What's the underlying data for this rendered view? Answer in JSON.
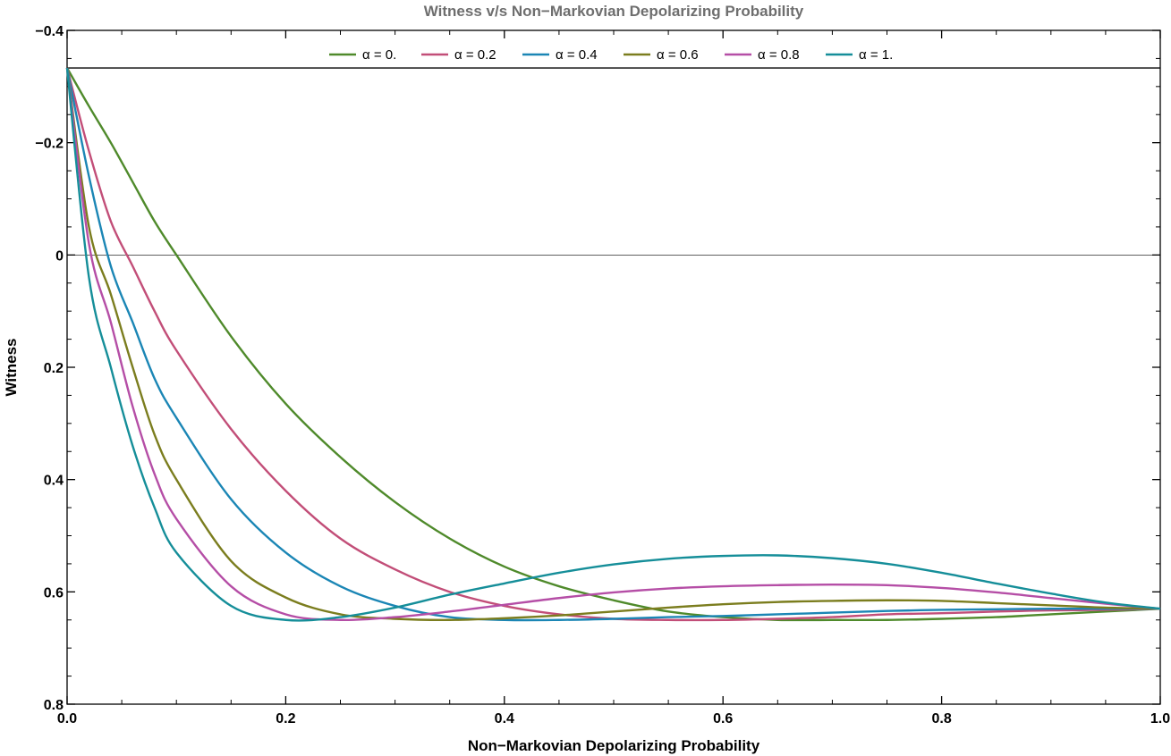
{
  "chart_data": {
    "type": "line",
    "title": "Witness v/s Non−Markovian Depolarizing Probability",
    "xlabel": "Non−Markovian Depolarizing Probability",
    "ylabel": "Witness",
    "xlim": [
      0,
      1
    ],
    "ylim": [
      -0.4,
      0.8
    ],
    "y_axis_inverted": true,
    "x_ticks": [
      0,
      0.2,
      0.4,
      0.6,
      0.8,
      1
    ],
    "x_tick_labels": [
      "0.0",
      "0.2",
      "0.4",
      "0.6",
      "0.8",
      "1.0"
    ],
    "y_ticks": [
      -0.4,
      -0.2,
      0,
      0.2,
      0.4,
      0.6,
      0.8
    ],
    "y_tick_labels": [
      "−0.4",
      "−0.2",
      "0",
      "0.2",
      "0.4",
      "0.6",
      "0.8"
    ],
    "grid": false,
    "legend_position": "top-center",
    "reference_lines": [
      -0.333,
      0
    ],
    "x": [
      0,
      0.02,
      0.04,
      0.06,
      0.08,
      0.1,
      0.15,
      0.2,
      0.25,
      0.3,
      0.35,
      0.4,
      0.45,
      0.5,
      0.55,
      0.6,
      0.65,
      0.7,
      0.75,
      0.8,
      0.85,
      0.9,
      0.95,
      1.0
    ],
    "series": [
      {
        "name": "α = 0.",
        "color": "#4f8a2b",
        "values": [
          -0.333,
          -0.265,
          -0.2,
          -0.13,
          -0.06,
          0.0,
          0.145,
          0.265,
          0.36,
          0.44,
          0.505,
          0.555,
          0.59,
          0.615,
          0.635,
          0.645,
          0.65,
          0.65,
          0.65,
          0.648,
          0.645,
          0.64,
          0.635,
          0.63
        ]
      },
      {
        "name": "α = 0.2",
        "color": "#c24e78",
        "values": [
          -0.333,
          -0.185,
          -0.06,
          0.02,
          0.1,
          0.17,
          0.31,
          0.42,
          0.505,
          0.56,
          0.6,
          0.625,
          0.64,
          0.648,
          0.65,
          0.65,
          0.648,
          0.645,
          0.64,
          0.638,
          0.635,
          0.633,
          0.632,
          0.63
        ]
      },
      {
        "name": "α = 0.4",
        "color": "#1b86b5",
        "values": [
          -0.333,
          -0.14,
          0.02,
          0.12,
          0.22,
          0.29,
          0.435,
          0.53,
          0.59,
          0.625,
          0.645,
          0.65,
          0.65,
          0.648,
          0.645,
          0.643,
          0.64,
          0.637,
          0.634,
          0.632,
          0.631,
          0.63,
          0.63,
          0.63
        ]
      },
      {
        "name": "α = 0.6",
        "color": "#7b7d1e",
        "values": [
          -0.333,
          -0.05,
          0.07,
          0.2,
          0.32,
          0.4,
          0.545,
          0.61,
          0.64,
          0.648,
          0.65,
          0.647,
          0.642,
          0.635,
          0.628,
          0.622,
          0.618,
          0.616,
          0.615,
          0.616,
          0.62,
          0.624,
          0.628,
          0.63
        ]
      },
      {
        "name": "α = 0.8",
        "color": "#b54ea6",
        "values": [
          -0.333,
          -0.02,
          0.12,
          0.27,
          0.39,
          0.47,
          0.59,
          0.64,
          0.65,
          0.645,
          0.635,
          0.623,
          0.611,
          0.601,
          0.594,
          0.59,
          0.588,
          0.587,
          0.588,
          0.593,
          0.601,
          0.611,
          0.621,
          0.63
        ]
      },
      {
        "name": "α = 1.",
        "color": "#158e99",
        "values": [
          -0.333,
          0.04,
          0.2,
          0.34,
          0.45,
          0.53,
          0.625,
          0.65,
          0.645,
          0.628,
          0.605,
          0.585,
          0.566,
          0.551,
          0.541,
          0.536,
          0.535,
          0.54,
          0.55,
          0.566,
          0.585,
          0.603,
          0.619,
          0.63
        ]
      }
    ]
  }
}
